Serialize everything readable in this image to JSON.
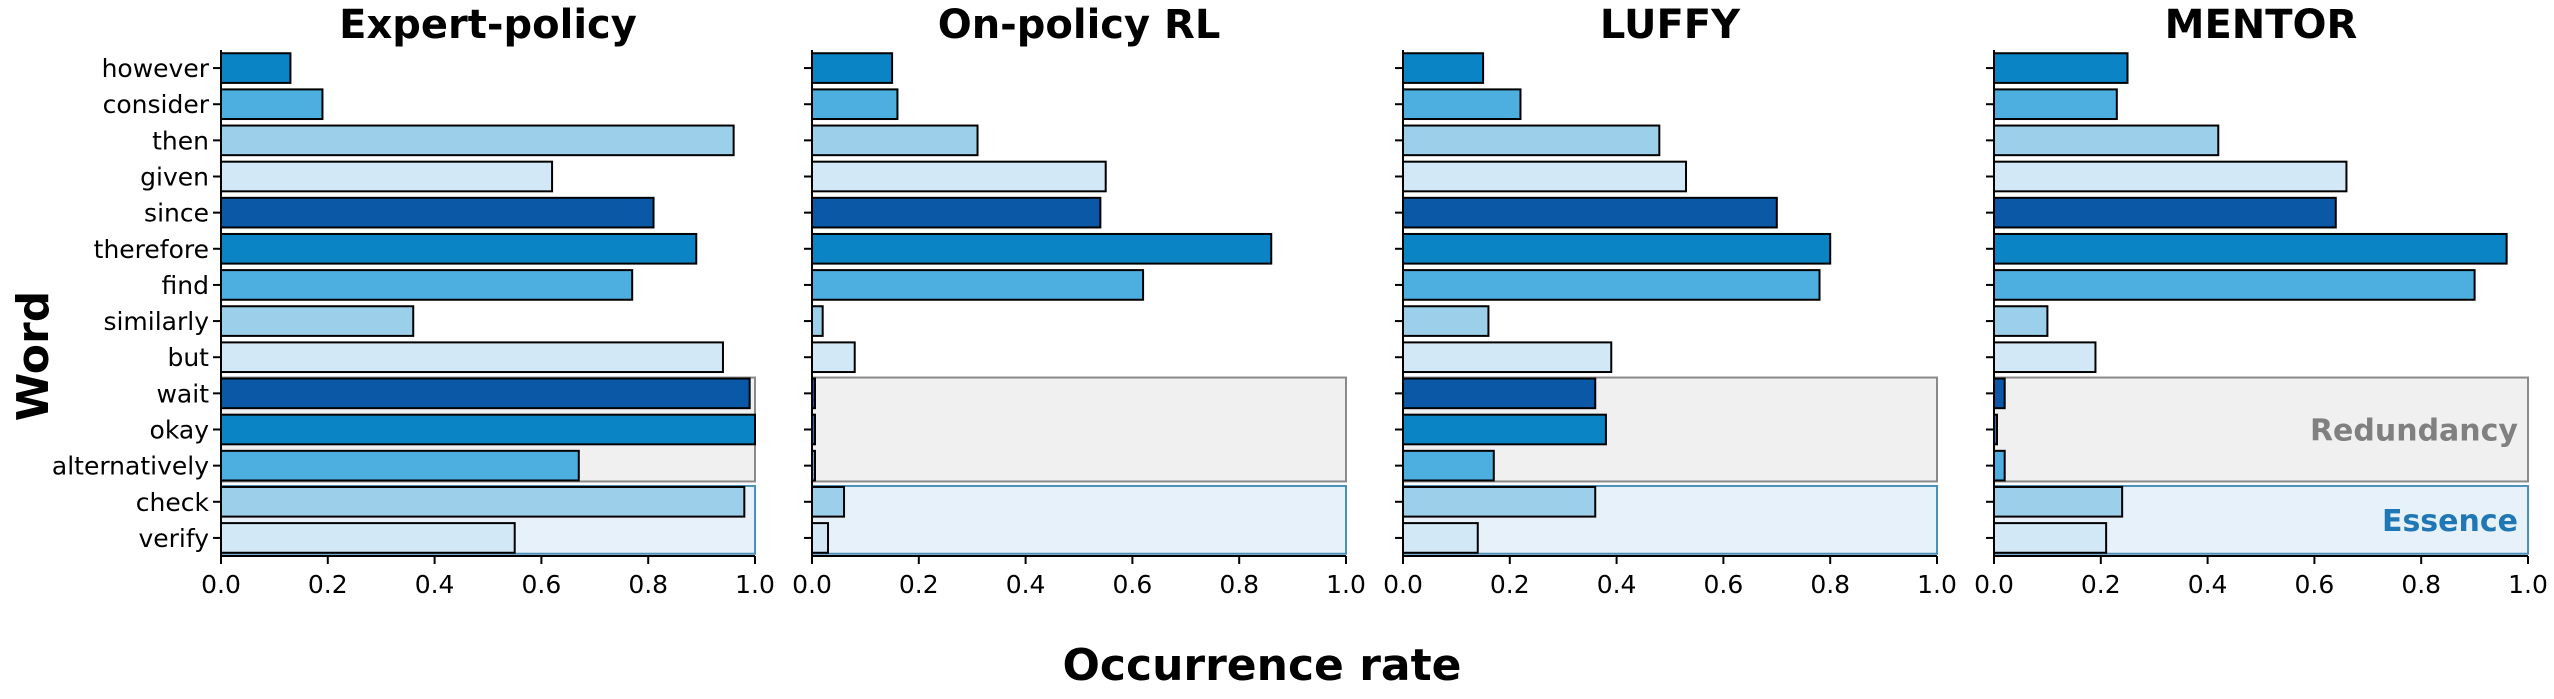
{
  "chart_data": {
    "type": "bar",
    "orientation": "horizontal",
    "words": [
      "however",
      "consider",
      "then",
      "given",
      "since",
      "therefore",
      "find",
      "similarly",
      "but",
      "wait",
      "okay",
      "alternatively",
      "check",
      "verify"
    ],
    "bar_colors": [
      "#0b84c6",
      "#4daee0",
      "#9ccfe9",
      "#d3e8f7",
      "#0a58a6",
      "#0b84c6",
      "#4daee0",
      "#9ccfe9",
      "#d3e8f7",
      "#0a58a6",
      "#0b84c6",
      "#4daee0",
      "#9ccfe9",
      "#d3e8f7"
    ],
    "xlabel": "Occurrence rate",
    "ylabel": "Word",
    "xlim": [
      0.0,
      1.0
    ],
    "xticks": [
      "0.0",
      "0.2",
      "0.4",
      "0.6",
      "0.8",
      "1.0"
    ],
    "regions": [
      {
        "label": "Redundancy",
        "words": [
          "wait",
          "okay",
          "alternatively"
        ],
        "fill": "#f0f0f0",
        "stroke": "#8a8a8a",
        "text_color": "#808080"
      },
      {
        "label": "Essence",
        "words": [
          "check",
          "verify"
        ],
        "fill": "#e6f1f9",
        "stroke": "#4a90b8",
        "text_color": "#1f77b4"
      }
    ],
    "panels": [
      {
        "title": "Expert-policy",
        "values": [
          0.13,
          0.19,
          0.96,
          0.62,
          0.81,
          0.89,
          0.77,
          0.36,
          0.94,
          0.99,
          1.0,
          0.67,
          0.98,
          0.55
        ]
      },
      {
        "title": "On-policy RL",
        "values": [
          0.15,
          0.16,
          0.31,
          0.55,
          0.54,
          0.86,
          0.62,
          0.02,
          0.08,
          0.005,
          0.005,
          0.005,
          0.06,
          0.03
        ]
      },
      {
        "title": "LUFFY",
        "values": [
          0.15,
          0.22,
          0.48,
          0.53,
          0.7,
          0.8,
          0.78,
          0.16,
          0.39,
          0.36,
          0.38,
          0.17,
          0.36,
          0.14
        ]
      },
      {
        "title": "MENTOR",
        "values": [
          0.25,
          0.23,
          0.42,
          0.66,
          0.64,
          0.96,
          0.9,
          0.1,
          0.19,
          0.02,
          0.005,
          0.02,
          0.24,
          0.21
        ]
      }
    ]
  }
}
